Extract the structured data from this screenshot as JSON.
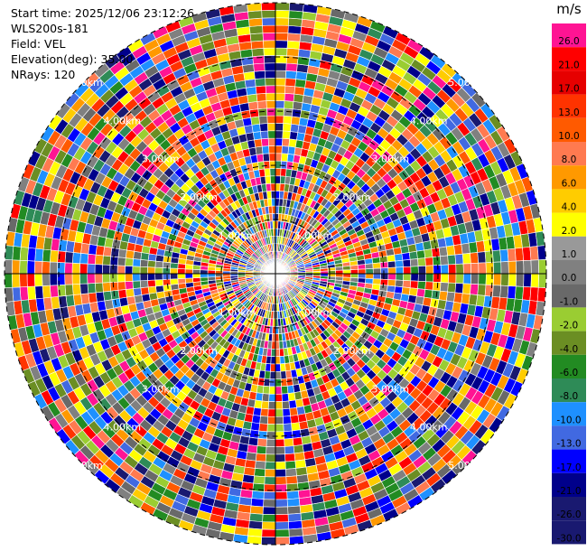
{
  "info": {
    "start_time": "Start time: 2025/12/06 23:12:26",
    "instrument": "WLS200s-181",
    "field": "Field: VEL",
    "elevation": "Elevation(deg): 35.00",
    "nrays": "NRays: 120"
  },
  "chart_data": {
    "type": "polar-ppi",
    "field": "VEL",
    "nrays": 120,
    "elevation_deg": 35.0,
    "range_rings": [
      {
        "label": "1.00km"
      },
      {
        "label": "2.00km"
      },
      {
        "label": "3.00km"
      },
      {
        "label": "4.00km"
      },
      {
        "label": "5.00km"
      }
    ],
    "colorbar": {
      "unit": "m/s",
      "levels": [
        "26.0",
        "21.0",
        "17.0",
        "13.0",
        "10.0",
        "8.0",
        "6.0",
        "4.0",
        "2.0",
        "1.0",
        "0.0",
        "-1.0",
        "-2.0",
        "-4.0",
        "-6.0",
        "-8.0",
        "-10.0",
        "-13.0",
        "-17.0",
        "-21.0",
        "-26.0",
        "-30.0"
      ],
      "colors": [
        "#ff1493",
        "#ff0000",
        "#e60000",
        "#ff3300",
        "#ff5a00",
        "#ff7a50",
        "#ff9900",
        "#ffcc00",
        "#ffff00",
        "#999999",
        "#808080",
        "#696969",
        "#9acd32",
        "#6b8e23",
        "#228b22",
        "#2e8b57",
        "#1e90ff",
        "#4169e1",
        "#0000ff",
        "#00008b",
        "#191970",
        "#191970"
      ]
    }
  }
}
